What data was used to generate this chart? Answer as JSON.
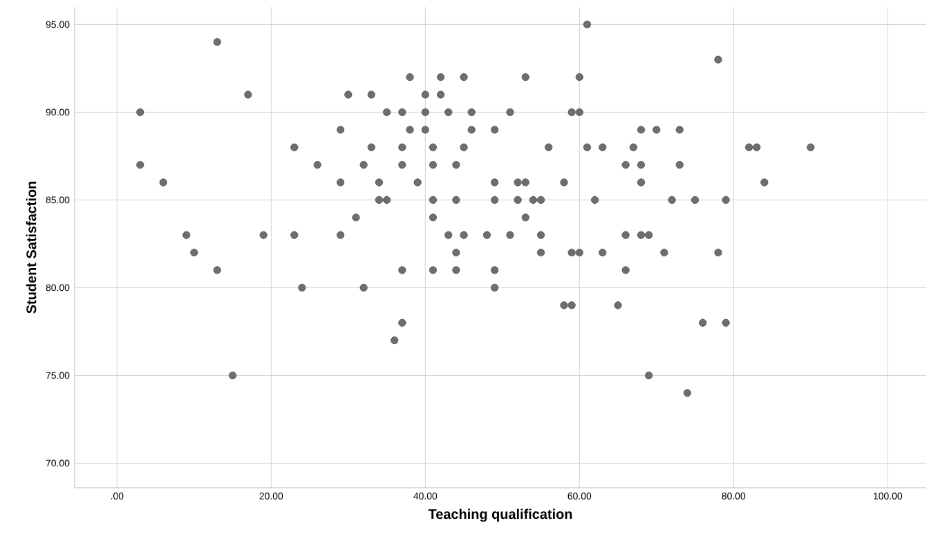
{
  "chart_data": {
    "type": "scatter",
    "xlabel": "Teaching qualification",
    "ylabel": "Student Satisfaction",
    "x": [
      13,
      38,
      42,
      45,
      17,
      30,
      33,
      40,
      42,
      3,
      35,
      37,
      40,
      43,
      46,
      29,
      38,
      40,
      46,
      49,
      23,
      33,
      37,
      41,
      45,
      3,
      26,
      32,
      37,
      41,
      44,
      6,
      29,
      34,
      39,
      49,
      34,
      35,
      41,
      44,
      49,
      31,
      41,
      9,
      19,
      23,
      29,
      43,
      45,
      48,
      10,
      44,
      13,
      37,
      41,
      44,
      49,
      24,
      32,
      49,
      37,
      36,
      15,
      61,
      78,
      53,
      60,
      51,
      59,
      60,
      68,
      70,
      73,
      56,
      61,
      63,
      67,
      82,
      83,
      90,
      66,
      68,
      73,
      52,
      53,
      58,
      68,
      84,
      52,
      54,
      55,
      62,
      72,
      75,
      79,
      53,
      51,
      55,
      66,
      68,
      69,
      55,
      59,
      60,
      63,
      71,
      78,
      66,
      58,
      59,
      65,
      76,
      79,
      69,
      74
    ],
    "values": [
      94,
      92,
      92,
      92,
      91,
      91,
      91,
      91,
      91,
      90,
      90,
      90,
      90,
      90,
      90,
      89,
      89,
      89,
      89,
      89,
      88,
      88,
      88,
      88,
      88,
      87,
      87,
      87,
      87,
      87,
      87,
      86,
      86,
      86,
      86,
      86,
      85,
      85,
      85,
      85,
      85,
      84,
      84,
      83,
      83,
      83,
      83,
      83,
      83,
      83,
      82,
      82,
      81,
      81,
      81,
      81,
      81,
      80,
      80,
      80,
      78,
      77,
      75,
      95,
      93,
      92,
      92,
      90,
      90,
      90,
      89,
      89,
      89,
      88,
      88,
      88,
      88,
      88,
      88,
      88,
      87,
      87,
      87,
      86,
      86,
      86,
      86,
      86,
      85,
      85,
      85,
      85,
      85,
      85,
      85,
      84,
      83,
      83,
      83,
      83,
      83,
      82,
      82,
      82,
      82,
      82,
      82,
      81,
      79,
      79,
      79,
      78,
      78,
      75,
      74
    ],
    "color": "#6e6e6e",
    "marker": "circle",
    "grid": true,
    "xlim": [
      -5.5,
      105
    ],
    "ylim": [
      68.6,
      96
    ],
    "xticks": [
      {
        "value": 0,
        "label": ".00"
      },
      {
        "value": 20,
        "label": "20.00"
      },
      {
        "value": 40,
        "label": "40.00"
      },
      {
        "value": 60,
        "label": "60.00"
      },
      {
        "value": 80,
        "label": "80.00"
      },
      {
        "value": 100,
        "label": "100.00"
      }
    ],
    "yticks": [
      {
        "value": 70,
        "label": "70.00"
      },
      {
        "value": 75,
        "label": "75.00"
      },
      {
        "value": 80,
        "label": "80.00"
      },
      {
        "value": 85,
        "label": "85.00"
      },
      {
        "value": 90,
        "label": "90.00"
      },
      {
        "value": 95,
        "label": "95.00"
      }
    ]
  }
}
